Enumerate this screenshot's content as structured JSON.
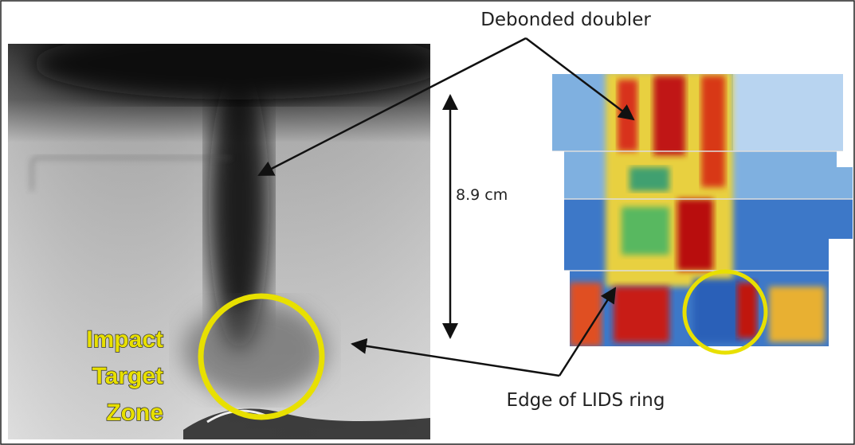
{
  "annotations": {
    "debonded_doubler": "Debonded doubler",
    "dimension": "8.9 cm",
    "impact_zone": [
      "Impact",
      "Target",
      "Zone"
    ],
    "lids_edge": "Edge of LIDS ring"
  }
}
